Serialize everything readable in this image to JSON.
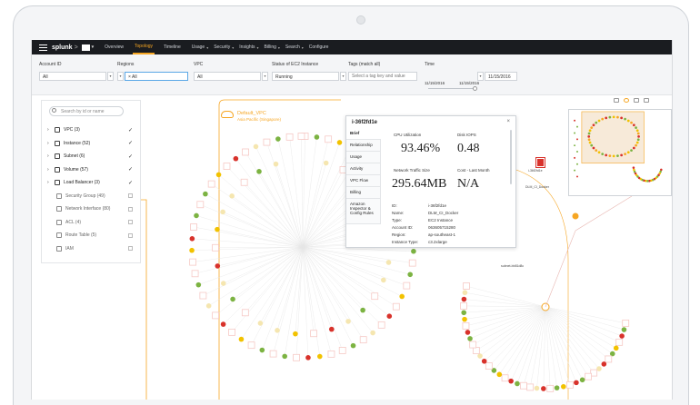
{
  "nav": {
    "brand": "splunk",
    "items": [
      {
        "label": "Overview",
        "active": false
      },
      {
        "label": "Topology",
        "active": true
      },
      {
        "label": "Timeline",
        "active": false
      },
      {
        "label": "Usage",
        "active": false
      },
      {
        "label": "Security",
        "active": false
      },
      {
        "label": "Insights",
        "active": false
      },
      {
        "label": "Billing",
        "active": false
      },
      {
        "label": "Search",
        "active": false
      },
      {
        "label": "Configure",
        "active": false
      }
    ]
  },
  "filters": {
    "account_id": {
      "label": "Account ID",
      "value": "All"
    },
    "regions": {
      "label": "Regions",
      "value": "All"
    },
    "vpc": {
      "label": "VPC",
      "value": "All"
    },
    "ec2_status": {
      "label": "Status of EC2 Instance",
      "value": "Running"
    },
    "tags": {
      "label": "Tags (match all)",
      "placeholder": "Select a tag key and value"
    },
    "time": {
      "label": "Time",
      "start": "11/15/2016",
      "end": "11/15/2016",
      "selected": "11/15/2016"
    }
  },
  "sidebar": {
    "search_placeholder": "Search by id or name",
    "items": [
      {
        "label": "VPC (3)",
        "checked": true,
        "expandable": true
      },
      {
        "label": "Instance (52)",
        "checked": true,
        "expandable": true
      },
      {
        "label": "Subnet (6)",
        "checked": true,
        "expandable": true
      },
      {
        "label": "Volume (57)",
        "checked": true,
        "expandable": true
      },
      {
        "label": "Load Balancer (3)",
        "checked": true,
        "expandable": true
      },
      {
        "label": "Security Group (49)",
        "checked": false,
        "expandable": false
      },
      {
        "label": "Network Interface (80)",
        "checked": false,
        "expandable": false
      },
      {
        "label": "ACL (4)",
        "checked": false,
        "expandable": false
      },
      {
        "label": "Route Table (5)",
        "checked": false,
        "expandable": false
      },
      {
        "label": "IAM",
        "checked": false,
        "expandable": false
      }
    ]
  },
  "vpc": {
    "name": "Default_VPC",
    "region": "Asia Pacific (Singapore)"
  },
  "popup": {
    "title": "i-36f2fd1e",
    "close": "×",
    "tabs": [
      "Brief",
      "Relationship",
      "Usage",
      "Activity",
      "VPC Flow",
      "Billing",
      "Amazon Inspector & Config Rules"
    ],
    "metrics": {
      "cpu_label": "CPU Utilization",
      "cpu_value": "93.46%",
      "disk_label": "Disk IOPS",
      "disk_value": "0.48",
      "net_label": "Network Traffic Size",
      "net_value": "295.64MB",
      "cost_label": "Cost - Last Month",
      "cost_value": "N/A"
    },
    "details": [
      {
        "key": "ID:",
        "value": "i-36f2fd1e"
      },
      {
        "key": "Name:",
        "value": "DLM_CI_Docker"
      },
      {
        "key": "Type:",
        "value": "EC2 Instance"
      },
      {
        "key": "Account ID:",
        "value": "063605715280"
      },
      {
        "key": "Region:",
        "value": "ap-southeast-1"
      },
      {
        "key": "Instance Type:",
        "value": "c3.2xlarge"
      }
    ]
  },
  "graph_labels": {
    "selected_node": "DLM_CI_Docker",
    "selected_node_id": "i-36f2fd1e",
    "subnet_node": "subnet-bb81d8c"
  },
  "colors": {
    "accent": "#f6a623",
    "red": "#d8322b",
    "green": "#7cb342",
    "yellow": "#f2c200",
    "pale": "#f6c9c5"
  }
}
